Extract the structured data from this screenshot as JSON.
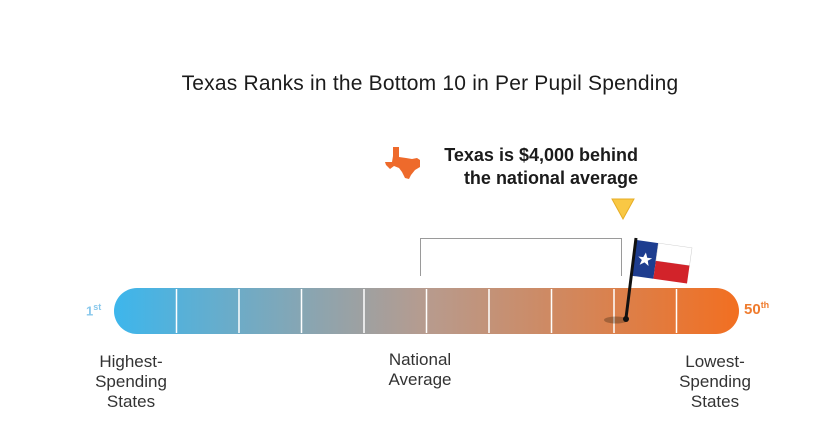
{
  "title": "Texas Ranks in the Bottom 10 in Per Pupil Spending",
  "callout": {
    "line1": "Texas is $4,000 behind",
    "line2": "the national average"
  },
  "scale": {
    "start_rank": "1",
    "start_suffix": "st",
    "end_rank": "50",
    "end_suffix": "th"
  },
  "labels": {
    "high": [
      "Highest-",
      "Spending",
      "States"
    ],
    "mid": [
      "National",
      "Average"
    ],
    "low": [
      "Lowest-",
      "Spending",
      "States"
    ]
  },
  "colors": {
    "bar_start": "#3db6ec",
    "bar_mid": "#b79b8e",
    "bar_end": "#f26f21",
    "marker": "#f9c844",
    "state_icon": "#ee6a2b",
    "flag_blue": "#1e3d8f",
    "flag_red": "#d2232a"
  },
  "chart_data": {
    "type": "bar",
    "title": "Texas Ranks in the Bottom 10 in Per Pupil Spending",
    "axis": {
      "start": 1,
      "end": 50,
      "start_label": "1st",
      "end_label": "50th"
    },
    "segments": 10,
    "national_average_position": 25,
    "texas_rank_position": 42,
    "annotation": "Texas is $4,000 behind the national average"
  }
}
